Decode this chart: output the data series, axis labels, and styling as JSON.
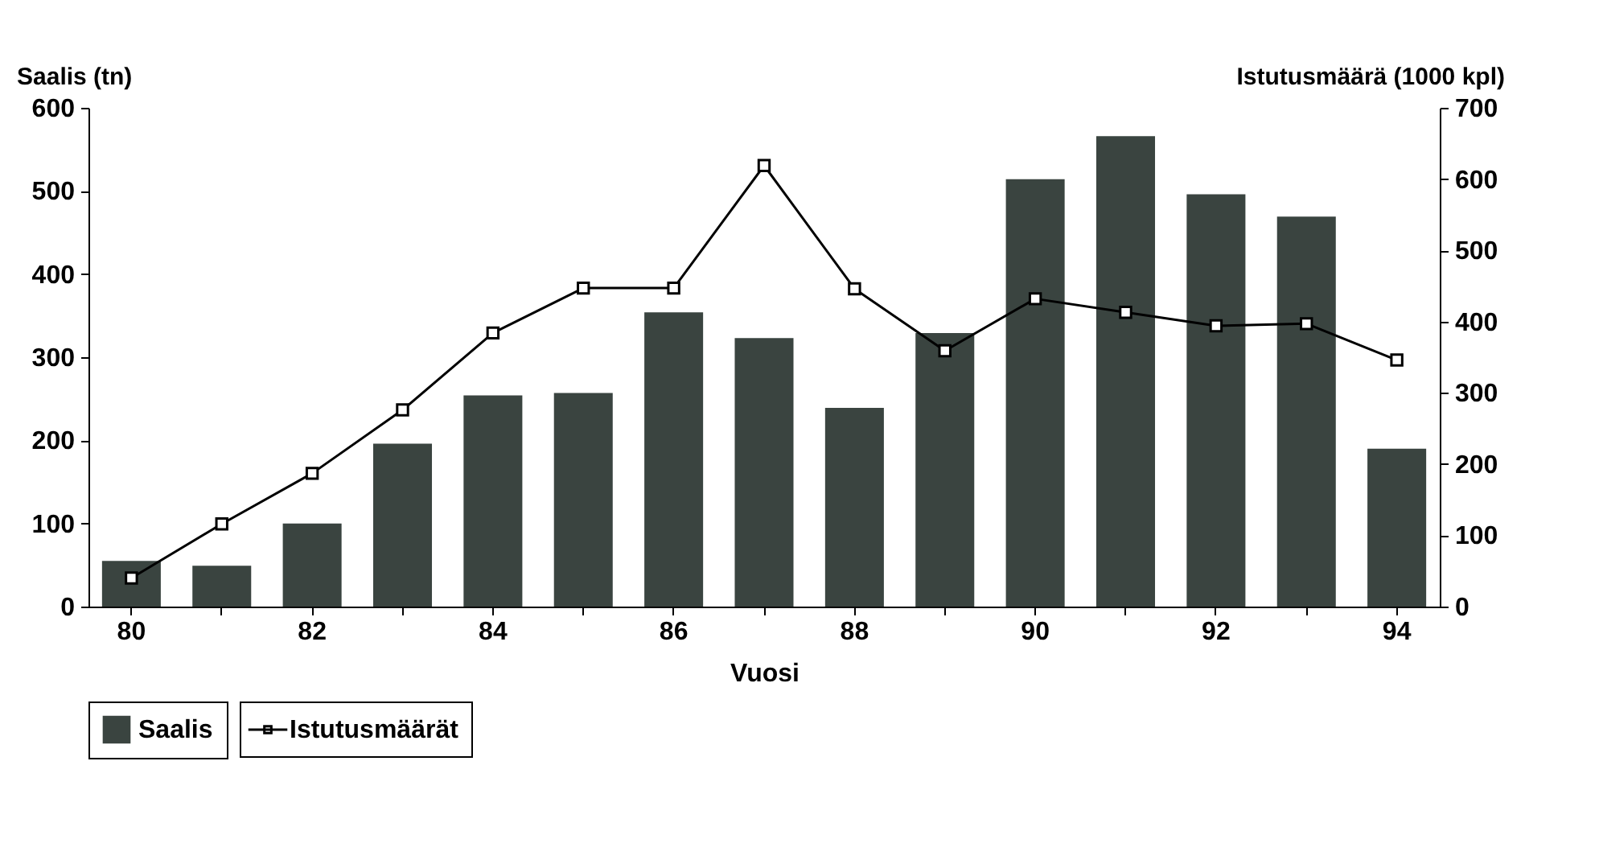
{
  "chart_data": {
    "type": "bar",
    "xlabel": "Vuosi",
    "ylabel": "Saalis (tn)",
    "y2label": "Istutusmäärä (1000 kpl)",
    "categories": [
      "80",
      null,
      "82",
      null,
      "84",
      null,
      "86",
      null,
      "88",
      null,
      "90",
      null,
      "92",
      null,
      "94"
    ],
    "series": [
      {
        "name": "Saalis",
        "color": "#3a4440",
        "values": [
          55,
          49,
          100,
          196,
          254,
          257,
          354,
          323,
          239,
          329,
          514,
          566,
          496,
          469,
          190
        ]
      },
      {
        "name": "Istutusmäärät",
        "type": "line",
        "axis": "y2",
        "color": "#000000",
        "values": [
          40,
          116,
          187,
          276,
          384,
          447,
          447,
          619,
          446,
          359,
          432,
          413,
          394,
          397,
          346
        ]
      }
    ],
    "ylim": [
      0,
      600
    ],
    "yticks": [
      0,
      100,
      200,
      300,
      400,
      500,
      600
    ],
    "y2lim": [
      0,
      700
    ],
    "y2ticks": [
      0,
      100,
      200,
      300,
      400,
      500,
      600,
      700
    ],
    "marker": "square",
    "line_style": "solid",
    "grid": false,
    "legend": "bottom"
  }
}
